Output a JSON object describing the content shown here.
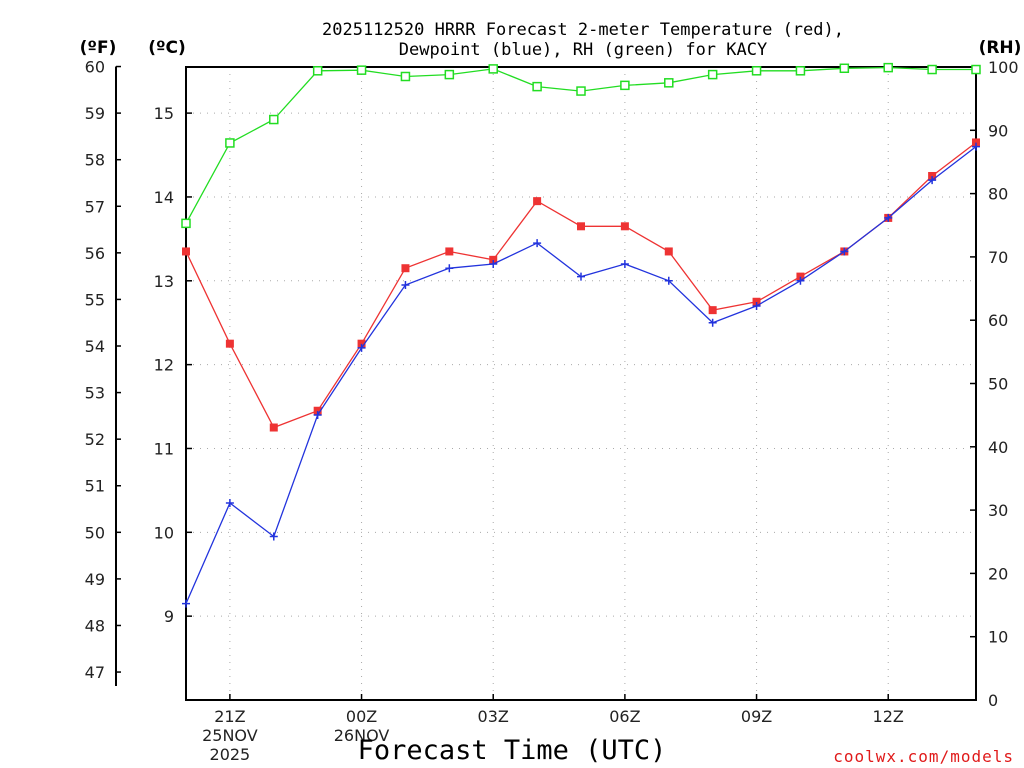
{
  "chart_data": {
    "type": "line",
    "title_line1": "2025112520 HRRR Forecast 2-meter Temperature (red),",
    "title_line2": "Dewpoint (blue), RH (green) for KACY",
    "xlabel": "Forecast Time (UTC)",
    "credit": "coolwx.com/models",
    "left_outer_unit": "(ºF)",
    "left_inner_unit": "(ºC)",
    "right_unit": "(RH)",
    "x_hours": [
      20,
      21,
      22,
      23,
      24,
      25,
      26,
      27,
      28,
      29,
      30,
      31,
      32,
      33,
      34,
      35,
      36,
      37,
      38
    ],
    "x_ticks": [
      {
        "hour": 21,
        "label": "21Z",
        "date": "25NOV",
        "year": "2025"
      },
      {
        "hour": 24,
        "label": "00Z",
        "date": "26NOV",
        "year": ""
      },
      {
        "hour": 27,
        "label": "03Z",
        "date": "",
        "year": ""
      },
      {
        "hour": 30,
        "label": "06Z",
        "date": "",
        "year": ""
      },
      {
        "hour": 33,
        "label": "09Z",
        "date": "",
        "year": ""
      },
      {
        "hour": 36,
        "label": "12Z",
        "date": "",
        "year": ""
      }
    ],
    "temp_c_range": [
      8.0,
      15.55
    ],
    "fahrenheit_ticks": [
      47,
      48,
      49,
      50,
      51,
      52,
      53,
      54,
      55,
      56,
      57,
      58,
      59,
      60
    ],
    "celsius_ticks": [
      9,
      10,
      11,
      12,
      13,
      14,
      15
    ],
    "rh_range": [
      0,
      100
    ],
    "rh_ticks": [
      0,
      10,
      20,
      30,
      40,
      50,
      60,
      70,
      80,
      90,
      100
    ],
    "series": [
      {
        "name": "Temperature",
        "unit": "C",
        "color": "#ee3333",
        "marker": "filled-square",
        "values": [
          13.35,
          12.25,
          11.25,
          11.45,
          12.25,
          13.15,
          13.35,
          13.25,
          13.95,
          13.65,
          13.65,
          13.35,
          12.65,
          12.75,
          13.05,
          13.35,
          13.75,
          14.25,
          14.65
        ]
      },
      {
        "name": "Dewpoint",
        "unit": "C",
        "color": "#2233dd",
        "marker": "plus",
        "values": [
          9.15,
          10.35,
          9.95,
          11.4,
          12.2,
          12.95,
          13.15,
          13.2,
          13.45,
          13.05,
          13.2,
          13.0,
          12.5,
          12.7,
          13.0,
          13.35,
          13.75,
          14.2,
          14.6
        ]
      },
      {
        "name": "RH",
        "unit": "%",
        "color": "#22dd22",
        "marker": "open-square",
        "values": [
          75.3,
          88.0,
          91.7,
          99.4,
          99.5,
          98.5,
          98.8,
          99.7,
          96.9,
          96.2,
          97.1,
          97.5,
          98.8,
          99.4,
          99.4,
          99.8,
          99.9,
          99.6,
          99.6
        ]
      }
    ]
  }
}
